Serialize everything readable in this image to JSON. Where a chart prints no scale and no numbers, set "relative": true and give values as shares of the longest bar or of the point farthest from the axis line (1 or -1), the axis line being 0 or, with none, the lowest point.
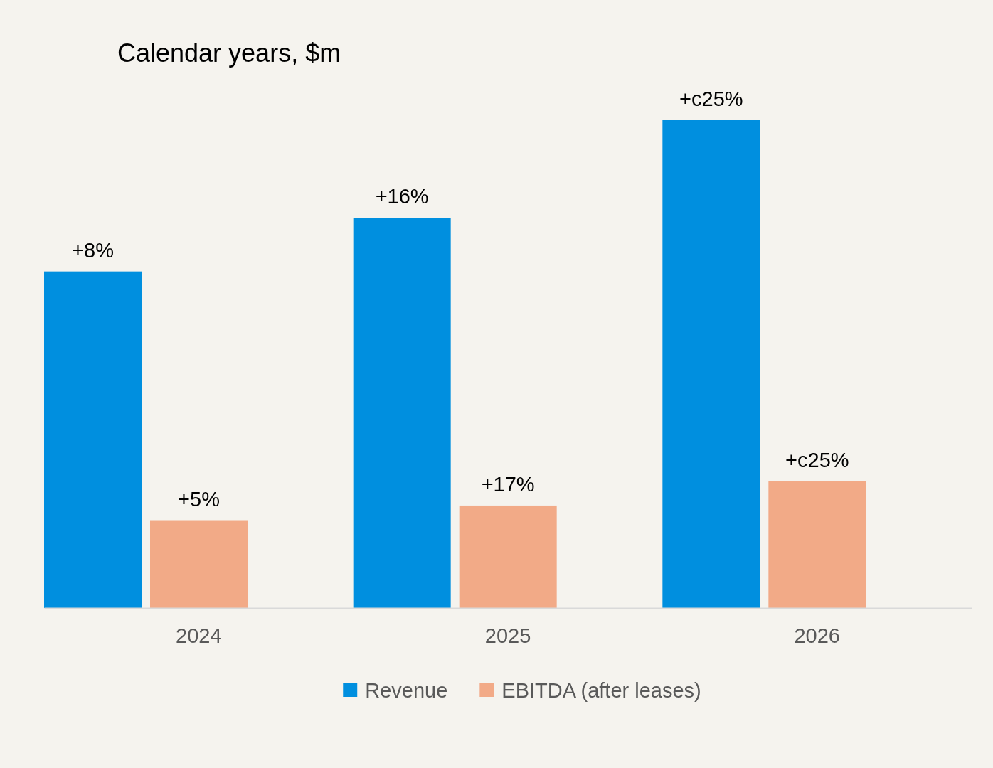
{
  "chart_data": {
    "type": "bar",
    "title": "Calendar years, $m",
    "categories": [
      "2024",
      "2025",
      "2026"
    ],
    "relative": true,
    "legend": "bottom",
    "series": [
      {
        "name": "Revenue",
        "color": "#008fdf",
        "values": [
          0.69,
          0.8,
          1
        ]
      },
      {
        "name": "EBITDA (after leases)",
        "color": "#f2aa87",
        "values": [
          0.18,
          0.21,
          0.26
        ]
      }
    ],
    "annotations": [
      "+8%",
      "+16%",
      "+c25%",
      "+5%",
      "+17%",
      "+c25%"
    ]
  }
}
